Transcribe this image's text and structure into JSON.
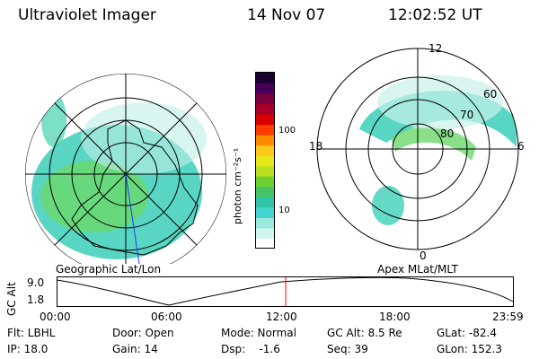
{
  "header": {
    "title": "Ultraviolet Imager",
    "date": "14 Nov 07",
    "time": "12:02:52 UT"
  },
  "left_panel": {
    "caption": "Geographic Lat/Lon"
  },
  "right_panel": {
    "caption": "Apex MLat/MLT",
    "mlt_labels": {
      "top": "12",
      "right": "6",
      "bottom": "0",
      "left": "18"
    },
    "mlat_labels": [
      "60",
      "70",
      "80"
    ]
  },
  "colorbar": {
    "unit_label": "photon cm⁻²s⁻¹",
    "ticks": [
      "100",
      "10"
    ],
    "colors": [
      "#ffffff",
      "#d0f5f0",
      "#9be8df",
      "#44d3cf",
      "#2fc4a8",
      "#44c466",
      "#6cd030",
      "#b8de1e",
      "#e6e619",
      "#ffc81a",
      "#ff8a00",
      "#ff3b00",
      "#d80000",
      "#a8002a",
      "#7a0040",
      "#460058",
      "#1a0030"
    ]
  },
  "altitude_strip": {
    "axis_title": "GC Alt",
    "y_ticks": [
      "9.0",
      "1.8"
    ],
    "x_ticks": [
      "00:00",
      "06:00",
      "12:00",
      "18:00",
      "23:59"
    ],
    "current_time_marker_hours": 12.05
  },
  "info": {
    "filter": "Flt: LBHL",
    "door": "Door: Open",
    "mode": "Mode: Normal",
    "gc_alt": "GC Alt: 8.5 Re",
    "glat": "GLat: -82.4",
    "ip": "IP: 18.0",
    "gain": "Gain: 14",
    "dsp": "Dsp:    -1.6",
    "seq": "Seq: 39",
    "glon": "GLon: 152.3"
  }
}
